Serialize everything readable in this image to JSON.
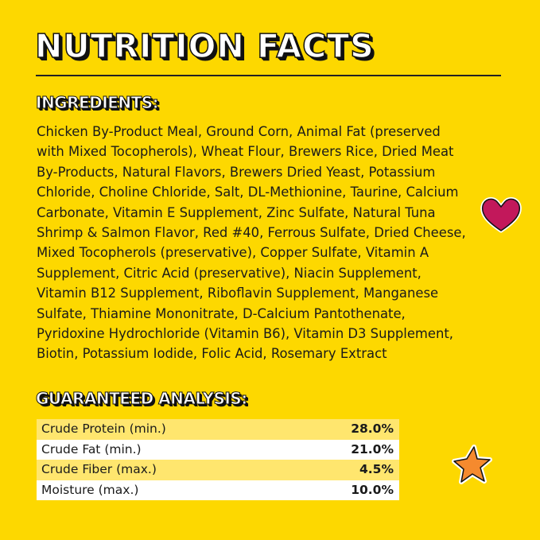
{
  "title": "NUTRITION FACTS",
  "ingredients": {
    "heading": "INGREDIENTS:",
    "lines": [
      "Chicken By-Product Meal, Ground Corn, Animal Fat (preserved",
      "with Mixed Tocopherols), Wheat Flour, Brewers Rice, Dried Meat",
      "By-Products, Natural Flavors, Brewers Dried Yeast, Potassium",
      "Chloride, Choline Chloride, Salt, DL-Methionine, Taurine, Calcium",
      "Carbonate, Vitamin E Supplement, Zinc Sulfate, Natural Tuna",
      "Shrimp & Salmon Flavor, Red #40, Ferrous Sulfate, Dried Cheese,",
      "Mixed Tocopherols (preservative), Copper Sulfate, Vitamin A",
      "Supplement, Citric Acid (preservative), Niacin Supplement,",
      "Vitamin B12 Supplement, Riboflavin Supplement, Manganese",
      "Sulfate, Thiamine Mononitrate, D-Calcium Pantothenate,",
      "Pyridoxine Hydrochloride (Vitamin B6), Vitamin D3 Supplement,",
      "Biotin, Potassium Iodide, Folic Acid, Rosemary Extract"
    ]
  },
  "analysis": {
    "heading": "GUARANTEED ANALYSIS:",
    "rows": [
      {
        "label": "Crude Protein (min.)",
        "value": "28.0%"
      },
      {
        "label": "Crude Fat (min.)",
        "value": "21.0%"
      },
      {
        "label": "Crude Fiber (max.)",
        "value": "4.5%"
      },
      {
        "label": "Moisture (max.)",
        "value": "10.0%"
      }
    ]
  },
  "colors": {
    "background": "#FDD800",
    "heart": "#C2185B",
    "star": "#F58A2E"
  },
  "decorations": [
    "heart-icon",
    "star-icon"
  ]
}
